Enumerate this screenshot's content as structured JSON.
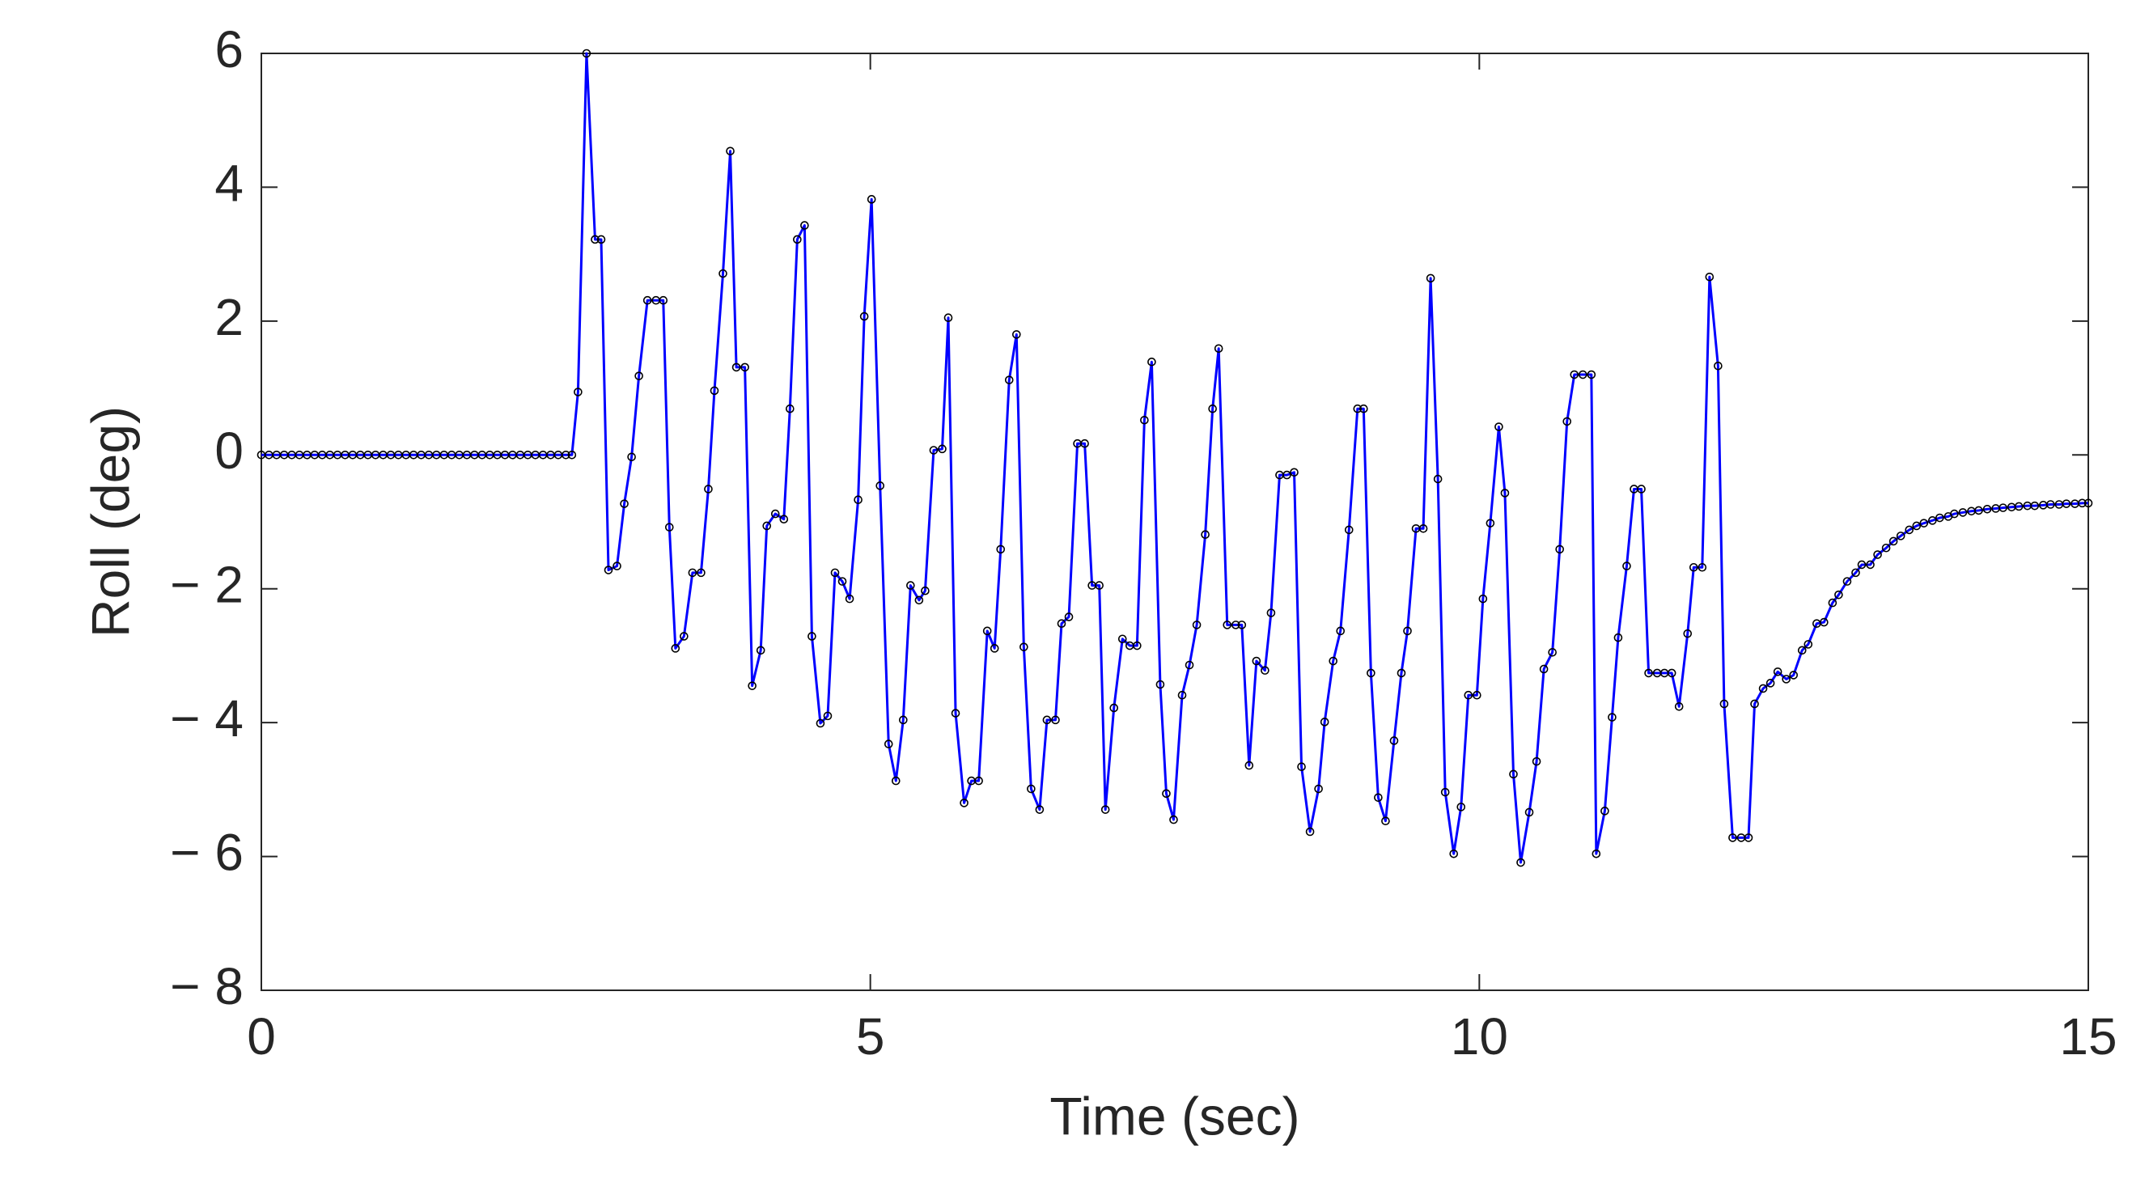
{
  "chart_data": {
    "type": "line",
    "x_label": "Time (sec)",
    "y_label": "Roll (deg)",
    "xlim": [
      0,
      15
    ],
    "ylim": [
      -8,
      6
    ],
    "xticks": [
      0,
      5,
      10,
      15
    ],
    "yticks": [
      {
        "value": -8,
        "label": "− 8"
      },
      {
        "value": -6,
        "label": "− 6"
      },
      {
        "value": -4,
        "label": "− 4"
      },
      {
        "value": -2,
        "label": "− 2"
      },
      0,
      2,
      4,
      6
    ],
    "color": "#0000ff",
    "marker_color": "#000000",
    "markers": true,
    "grid": false,
    "x": [
      0,
      0.0625,
      0.125,
      0.1875,
      0.25,
      0.3125,
      0.375,
      0.4375,
      0.5,
      0.5625,
      0.625,
      0.6875,
      0.75,
      0.8125,
      0.875,
      0.9375,
      1,
      1.0625,
      1.125,
      1.1875,
      1.25,
      1.3125,
      1.375,
      1.4375,
      1.5,
      1.5625,
      1.625,
      1.6875,
      1.75,
      1.8125,
      1.875,
      1.9375,
      2,
      2.0625,
      2.125,
      2.1875,
      2.25,
      2.3125,
      2.375,
      2.4375,
      2.5,
      2.55,
      2.6,
      2.67,
      2.74,
      2.79,
      2.85,
      2.92,
      2.98,
      3.04,
      3.1,
      3.17,
      3.24,
      3.3,
      3.35,
      3.4,
      3.47,
      3.54,
      3.61,
      3.67,
      3.72,
      3.79,
      3.85,
      3.9,
      3.97,
      4.03,
      4.1,
      4.15,
      4.22,
      4.29,
      4.34,
      4.4,
      4.46,
      4.52,
      4.59,
      4.65,
      4.71,
      4.77,
      4.83,
      4.9,
      4.95,
      5.01,
      5.08,
      5.15,
      5.21,
      5.27,
      5.33,
      5.4,
      5.45,
      5.52,
      5.59,
      5.64,
      5.7,
      5.77,
      5.83,
      5.89,
      5.96,
      6.02,
      6.07,
      6.14,
      6.2,
      6.26,
      6.32,
      6.39,
      6.45,
      6.52,
      6.57,
      6.63,
      6.7,
      6.76,
      6.82,
      6.88,
      6.93,
      7,
      7.07,
      7.13,
      7.19,
      7.25,
      7.31,
      7.38,
      7.43,
      7.49,
      7.56,
      7.62,
      7.68,
      7.75,
      7.81,
      7.86,
      7.93,
      8,
      8.05,
      8.11,
      8.17,
      8.24,
      8.29,
      8.36,
      8.42,
      8.48,
      8.54,
      8.61,
      8.68,
      8.73,
      8.8,
      8.86,
      8.93,
      9,
      9.05,
      9.11,
      9.17,
      9.23,
      9.3,
      9.36,
      9.41,
      9.48,
      9.54,
      9.6,
      9.66,
      9.72,
      9.79,
      9.85,
      9.91,
      9.98,
      10.03,
      10.09,
      10.16,
      10.21,
      10.28,
      10.34,
      10.41,
      10.47,
      10.53,
      10.6,
      10.66,
      10.72,
      10.78,
      10.85,
      10.92,
      10.96,
      11.03,
      11.09,
      11.14,
      11.21,
      11.27,
      11.33,
      11.39,
      11.46,
      11.52,
      11.58,
      11.64,
      11.71,
      11.76,
      11.83,
      11.89,
      11.96,
      12.01,
      12.08,
      12.15,
      12.21,
      12.26,
      12.33,
      12.39,
      12.45,
      12.52,
      12.58,
      12.65,
      12.7,
      12.77,
      12.83,
      12.9,
      12.95,
      13.02,
      13.09,
      13.14,
      13.21,
      13.27,
      13.34,
      13.4,
      13.46,
      13.53,
      13.59,
      13.65,
      13.72,
      13.78,
      13.85,
      13.9,
      13.97,
      14.04,
      14.1,
      14.17,
      14.24,
      14.3,
      14.37,
      14.43,
      14.5,
      14.56,
      14.63,
      14.69,
      14.76,
      14.82,
      14.89,
      14.95,
      15
    ],
    "values": [
      0,
      0,
      0,
      0,
      0,
      0,
      0,
      0,
      0,
      0,
      0,
      0,
      0,
      0,
      0,
      0,
      0,
      0,
      0,
      0,
      0,
      0,
      0,
      0,
      0,
      0,
      0,
      0,
      0,
      0,
      0,
      0,
      0,
      0,
      0,
      0,
      0,
      0,
      0,
      0,
      0,
      0,
      0.94,
      6.0,
      3.22,
      3.22,
      -1.72,
      -1.66,
      -0.73,
      -0.03,
      1.18,
      2.31,
      2.31,
      2.31,
      -1.08,
      -2.89,
      -2.71,
      -1.76,
      -1.76,
      -0.51,
      0.96,
      2.71,
      4.54,
      1.31,
      1.31,
      -3.45,
      -2.92,
      -1.06,
      -0.88,
      -0.96,
      0.69,
      3.22,
      3.43,
      -2.71,
      -4.01,
      -3.9,
      -1.76,
      -1.89,
      -2.15,
      -0.67,
      2.07,
      3.82,
      -0.46,
      -4.32,
      -4.87,
      -3.96,
      -1.95,
      -2.17,
      -2.03,
      0.07,
      0.09,
      2.05,
      -3.86,
      -5.2,
      -4.87,
      -4.87,
      -2.63,
      -2.89,
      -1.41,
      1.12,
      1.8,
      -2.87,
      -4.99,
      -5.3,
      -3.96,
      -3.96,
      -2.52,
      -2.42,
      0.17,
      0.17,
      -1.95,
      -1.95,
      -5.3,
      -3.78,
      -2.75,
      -2.85,
      -2.85,
      0.52,
      1.39,
      -3.43,
      -5.06,
      -5.45,
      -3.59,
      -3.14,
      -2.54,
      -1.19,
      0.69,
      1.59,
      -2.54,
      -2.54,
      -2.54,
      -4.64,
      -3.08,
      -3.22,
      -2.36,
      -0.3,
      -0.3,
      -0.26,
      -4.66,
      -5.63,
      -4.99,
      -3.99,
      -3.08,
      -2.63,
      -1.12,
      0.69,
      0.69,
      -3.26,
      -5.12,
      -5.47,
      -4.27,
      -3.26,
      -2.63,
      -1.1,
      -1.1,
      2.64,
      -0.36,
      -5.04,
      -5.96,
      -5.26,
      -3.59,
      -3.59,
      -2.15,
      -1.02,
      0.42,
      -0.57,
      -4.77,
      -6.09,
      -5.34,
      -4.58,
      -3.2,
      -2.95,
      -1.41,
      0.5,
      1.2,
      1.2,
      1.2,
      -5.96,
      -5.32,
      -3.92,
      -2.73,
      -1.66,
      -0.51,
      -0.51,
      -3.26,
      -3.26,
      -3.26,
      -3.26,
      -3.76,
      -2.67,
      -1.68,
      -1.68,
      2.66,
      1.33,
      -3.72,
      -5.72,
      -5.72,
      -5.72,
      -3.72,
      -3.49,
      -3.41,
      -3.24,
      -3.35,
      -3.29,
      -2.92,
      -2.83,
      -2.52,
      -2.5,
      -2.21,
      -2.09,
      -1.89,
      -1.76,
      -1.64,
      -1.64,
      -1.49,
      -1.39,
      -1.29,
      -1.21,
      -1.12,
      -1.06,
      -1.02,
      -0.98,
      -0.94,
      -0.92,
      -0.88,
      -0.86,
      -0.84,
      -0.83,
      -0.81,
      -0.8,
      -0.79,
      -0.78,
      -0.77,
      -0.76,
      -0.76,
      -0.75,
      -0.74,
      -0.74,
      -0.73,
      -0.73,
      -0.72,
      -0.72
    ]
  }
}
